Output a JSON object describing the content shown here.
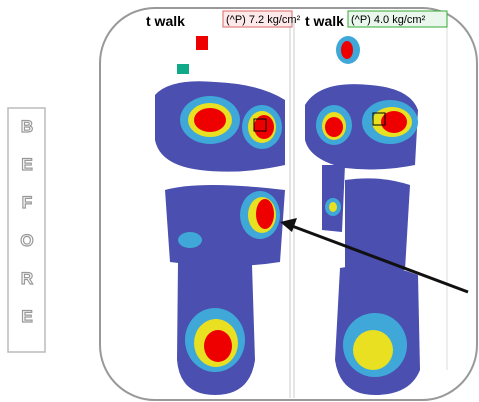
{
  "side_label": [
    "B",
    "E",
    "F",
    "O",
    "R",
    "E"
  ],
  "panels": [
    {
      "heading": "t walk",
      "peak": "(^P) 7.2 kg/cm²"
    },
    {
      "heading": "t walk",
      "peak": "(^P) 4.0 kg/cm²"
    }
  ]
}
